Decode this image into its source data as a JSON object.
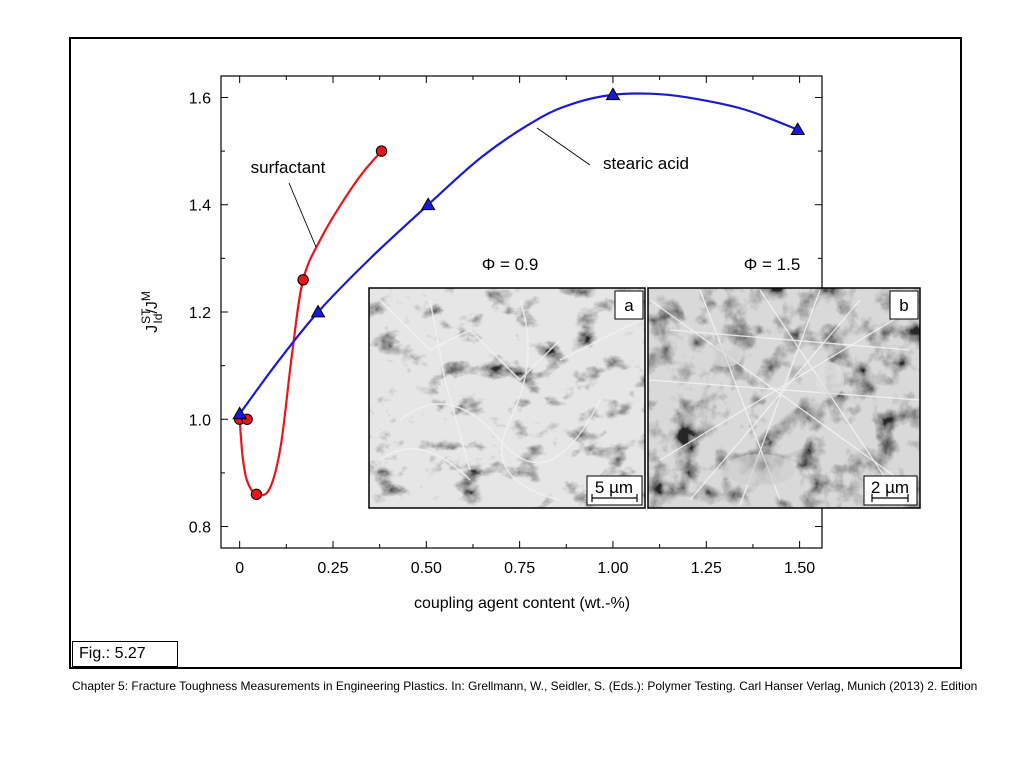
{
  "chart_data": {
    "type": "line",
    "xlabel": "coupling agent content (wt.-%)",
    "ylabel": {
      "base": "J",
      "sub": "Id",
      "sup": "ST",
      "denominator_base": "/J",
      "denominator_sup": "M"
    },
    "xlim": [
      -0.05,
      1.56
    ],
    "ylim": [
      0.76,
      1.64
    ],
    "x_ticks": [
      {
        "value": 0,
        "label": "0"
      },
      {
        "value": 0.25,
        "label": "0.25"
      },
      {
        "value": 0.5,
        "label": "0.50"
      },
      {
        "value": 0.75,
        "label": "0.75"
      },
      {
        "value": 1.0,
        "label": "1.00"
      },
      {
        "value": 1.25,
        "label": "1.25"
      },
      {
        "value": 1.5,
        "label": "1.50"
      }
    ],
    "x_minor_ticks": [
      0.125,
      0.375,
      0.625,
      0.875,
      1.125,
      1.375
    ],
    "y_ticks": [
      {
        "value": 0.8,
        "label": "0.8"
      },
      {
        "value": 1.0,
        "label": "1.0"
      },
      {
        "value": 1.2,
        "label": "1.2"
      },
      {
        "value": 1.4,
        "label": "1.4"
      },
      {
        "value": 1.6,
        "label": "1.6"
      }
    ],
    "y_minor_ticks": [
      0.9,
      1.1,
      1.3,
      1.5
    ],
    "series": [
      {
        "name": "surfactant",
        "color": "#e8161b",
        "marker": "circle",
        "points": [
          [
            0.0,
            1.0
          ],
          [
            0.02,
            1.0
          ],
          [
            0.045,
            0.86
          ],
          [
            0.17,
            1.26
          ],
          [
            0.38,
            1.5
          ]
        ],
        "curve": [
          [
            0.0,
            1.0
          ],
          [
            0.008,
            0.93
          ],
          [
            0.02,
            0.885
          ],
          [
            0.045,
            0.86
          ],
          [
            0.08,
            0.87
          ],
          [
            0.11,
            0.95
          ],
          [
            0.14,
            1.12
          ],
          [
            0.17,
            1.26
          ],
          [
            0.22,
            1.34
          ],
          [
            0.28,
            1.41
          ],
          [
            0.33,
            1.46
          ],
          [
            0.38,
            1.5
          ]
        ]
      },
      {
        "name": "stearic acid",
        "color": "#1a1ad6",
        "marker": "triangle",
        "points": [
          [
            0.0,
            1.01
          ],
          [
            0.21,
            1.2
          ],
          [
            0.505,
            1.4
          ],
          [
            1.0,
            1.605
          ],
          [
            1.495,
            1.54
          ]
        ],
        "curve": [
          [
            0.0,
            1.01
          ],
          [
            0.1,
            1.105
          ],
          [
            0.21,
            1.2
          ],
          [
            0.35,
            1.3
          ],
          [
            0.505,
            1.4
          ],
          [
            0.65,
            1.49
          ],
          [
            0.8,
            1.56
          ],
          [
            0.9,
            1.59
          ],
          [
            1.0,
            1.605
          ],
          [
            1.1,
            1.607
          ],
          [
            1.2,
            1.6
          ],
          [
            1.35,
            1.578
          ],
          [
            1.495,
            1.54
          ]
        ]
      }
    ],
    "annotations": [
      {
        "text": "surfactant",
        "target_series": "surfactant"
      },
      {
        "text": "stearic acid",
        "target_series": "stearic acid"
      }
    ]
  },
  "insets": [
    {
      "phi_label": "Φ = 0.9",
      "panel_label": "a",
      "scale_bar": "5 µm"
    },
    {
      "phi_label": "Φ = 1.5",
      "panel_label": "b",
      "scale_bar": "2 µm"
    }
  ],
  "figure_label": "Fig.: 5.27",
  "citation": "Chapter 5: Fracture Toughness Measurements in Engineering Plastics. In: Grellmann, W., Seidler, S. (Eds.): Polymer Testing. Carl Hanser Verlag, Munich (2013) 2. Edition"
}
